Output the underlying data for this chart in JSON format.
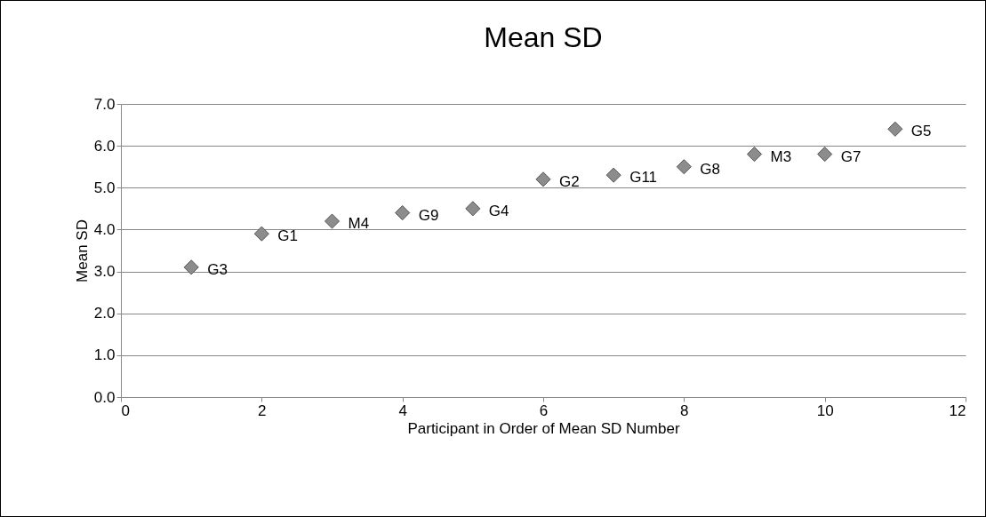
{
  "chart_data": {
    "type": "scatter",
    "title": "Mean SD",
    "xlabel": "Participant in Order of Mean SD Number",
    "ylabel": "Mean SD",
    "x": [
      1,
      2,
      3,
      4,
      5,
      6,
      7,
      8,
      9,
      10,
      11
    ],
    "series": [
      {
        "color": "#8c8c8c",
        "values": [
          3.1,
          3.9,
          4.2,
          4.4,
          4.5,
          5.2,
          5.3,
          5.5,
          5.8,
          5.8,
          6.4
        ]
      }
    ],
    "annotations": [
      {
        "text": "G3",
        "x": 1,
        "y": 3.1
      },
      {
        "text": "G1",
        "x": 2,
        "y": 3.9
      },
      {
        "text": "M4",
        "x": 3,
        "y": 4.2
      },
      {
        "text": "G9",
        "x": 4,
        "y": 4.4
      },
      {
        "text": "G4",
        "x": 5,
        "y": 4.5
      },
      {
        "text": "G2",
        "x": 6,
        "y": 5.2
      },
      {
        "text": "G11",
        "x": 7,
        "y": 5.3
      },
      {
        "text": "G8",
        "x": 8,
        "y": 5.5
      },
      {
        "text": "M3",
        "x": 9,
        "y": 5.8
      },
      {
        "text": "G7",
        "x": 10,
        "y": 5.8
      },
      {
        "text": "G5",
        "x": 11,
        "y": 6.4
      }
    ],
    "xlim": [
      0,
      12
    ],
    "xticks": [
      0,
      2,
      4,
      6,
      8,
      10,
      12
    ],
    "ylim": [
      0,
      7
    ],
    "yticks": [
      {
        "value": 0,
        "label": "0.0"
      },
      {
        "value": 1,
        "label": "1.0"
      },
      {
        "value": 2,
        "label": "2.0"
      },
      {
        "value": 3,
        "label": "3.0"
      },
      {
        "value": 4,
        "label": "4.0"
      },
      {
        "value": 5,
        "label": "5.0"
      },
      {
        "value": 6,
        "label": "6.0"
      },
      {
        "value": 7,
        "label": "7.0"
      }
    ],
    "grid": "y",
    "marker": "diamond"
  }
}
